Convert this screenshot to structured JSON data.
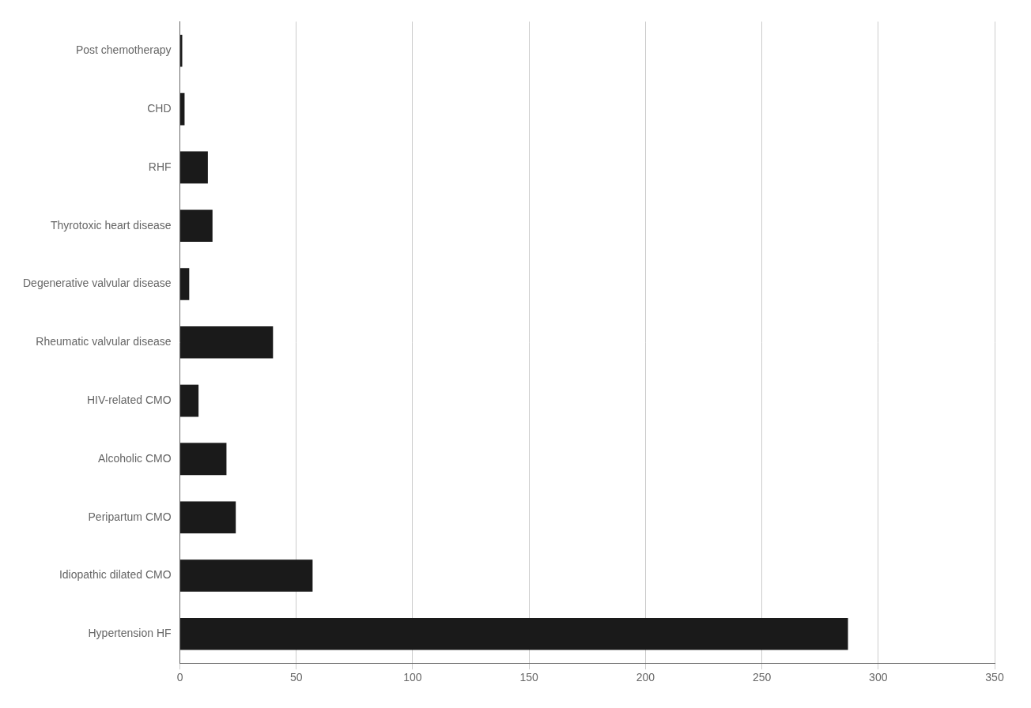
{
  "chart_data": {
    "type": "bar",
    "orientation": "horizontal",
    "categories": [
      "Hypertension HF",
      "Idiopathic dilated CMO",
      "Peripartum CMO",
      "Alcoholic CMO",
      "HIV-related CMO",
      "Rheumatic valvular disease",
      "Degenerative valvular disease",
      "Thyrotoxic heart disease",
      "RHF",
      "CHD",
      "Post chemotherapy"
    ],
    "values": [
      287,
      57,
      24,
      20,
      8,
      40,
      4,
      14,
      12,
      2,
      1
    ],
    "color": "#1a1a1a",
    "xlim": [
      0,
      350
    ],
    "xticks": [
      0,
      50,
      100,
      150,
      200,
      250,
      300,
      350
    ],
    "grid": true
  }
}
